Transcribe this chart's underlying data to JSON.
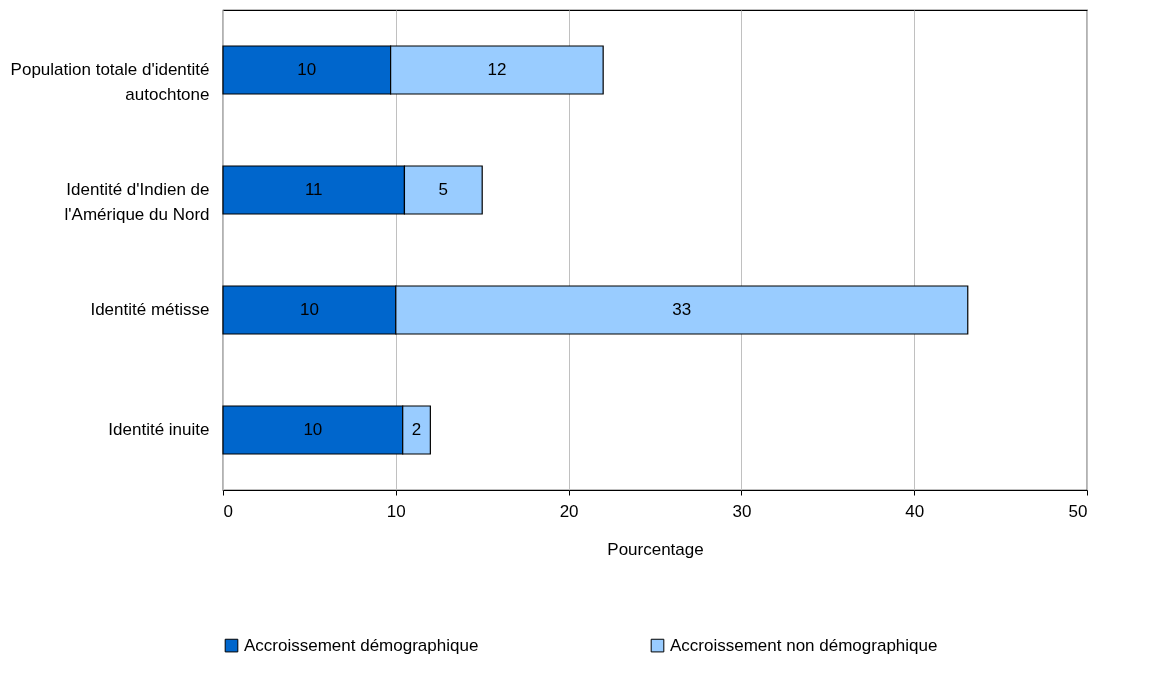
{
  "chart_data": {
    "type": "bar",
    "orientation": "horizontal",
    "stacked": true,
    "categories": [
      "Population totale d'identité autochtone",
      "Identité d'Indien de l'Amérique du Nord",
      "Identité métisse",
      "Identité inuite"
    ],
    "series": [
      {
        "name": "Accroissement démographique",
        "color": "#0066cc",
        "values": [
          9.7,
          10.5,
          10.0,
          10.4
        ],
        "value_labels": [
          "10",
          "11",
          "10",
          "10"
        ]
      },
      {
        "name": "Accroissement non démographique",
        "color": "#99ccff",
        "values": [
          12.3,
          4.5,
          33.1,
          1.6
        ],
        "value_labels": [
          "12",
          "5",
          "33",
          "2"
        ]
      }
    ],
    "xlabel": "Pourcentage",
    "xlim": [
      0,
      50
    ],
    "xticks": [
      0,
      10,
      20,
      30,
      40,
      50
    ],
    "grid": "x",
    "legend": "bottom"
  }
}
